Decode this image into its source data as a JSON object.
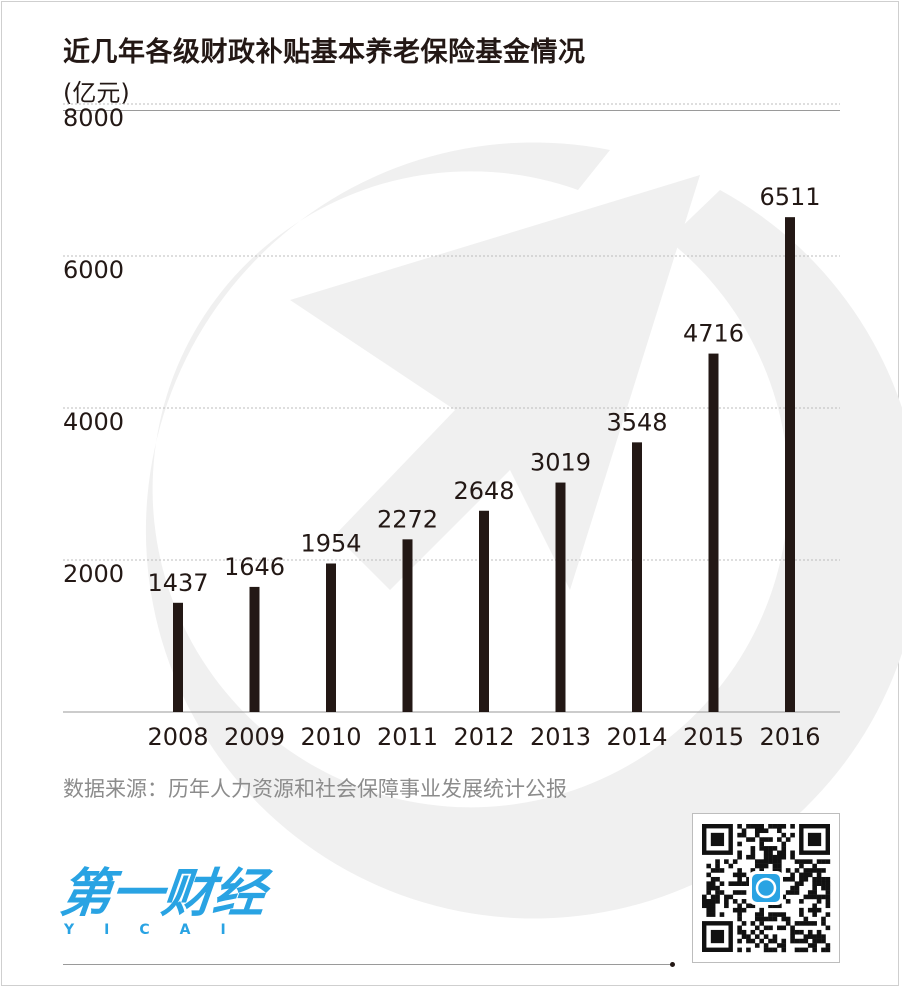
{
  "header": {
    "title": "近几年各级财政补贴基本养老保险基金情况",
    "unit": "(亿元)"
  },
  "chart_data": {
    "type": "bar",
    "categories": [
      "2008",
      "2009",
      "2010",
      "2011",
      "2012",
      "2013",
      "2014",
      "2015",
      "2016"
    ],
    "values": [
      1437,
      1646,
      1954,
      2272,
      2648,
      3019,
      3548,
      4716,
      6511
    ],
    "title": "近几年各级财政补贴基本养老保险基金情况",
    "xlabel": "",
    "ylabel": "(亿元)",
    "ylim": [
      0,
      8000
    ],
    "yticks": [
      "2000",
      "4000",
      "6000",
      "8000"
    ],
    "grid": true,
    "bar_color": "#231815"
  },
  "footer": {
    "source": "数据来源：历年人力资源和社会保障事业发展统计公报",
    "logo": "第一财经",
    "logo_sub": "YICAI"
  },
  "colors": {
    "text": "#231815",
    "grid": "#bdbdbd",
    "brand": "#29a3e3",
    "source": "#8c8c8c"
  }
}
